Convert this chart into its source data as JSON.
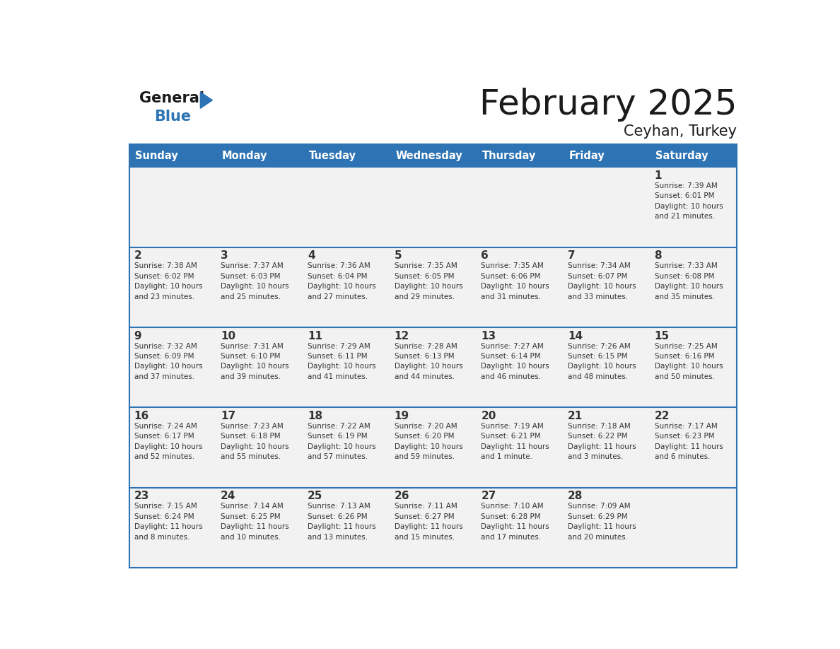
{
  "title": "February 2025",
  "subtitle": "Ceyhan, Turkey",
  "header_color": "#2E74B5",
  "header_text_color": "#FFFFFF",
  "cell_bg_color": "#F2F2F2",
  "border_color": "#2E74B5",
  "text_color": "#333333",
  "day_names": [
    "Sunday",
    "Monday",
    "Tuesday",
    "Wednesday",
    "Thursday",
    "Friday",
    "Saturday"
  ],
  "weeks": [
    [
      {
        "day": null,
        "info": null
      },
      {
        "day": null,
        "info": null
      },
      {
        "day": null,
        "info": null
      },
      {
        "day": null,
        "info": null
      },
      {
        "day": null,
        "info": null
      },
      {
        "day": null,
        "info": null
      },
      {
        "day": 1,
        "info": "Sunrise: 7:39 AM\nSunset: 6:01 PM\nDaylight: 10 hours\nand 21 minutes."
      }
    ],
    [
      {
        "day": 2,
        "info": "Sunrise: 7:38 AM\nSunset: 6:02 PM\nDaylight: 10 hours\nand 23 minutes."
      },
      {
        "day": 3,
        "info": "Sunrise: 7:37 AM\nSunset: 6:03 PM\nDaylight: 10 hours\nand 25 minutes."
      },
      {
        "day": 4,
        "info": "Sunrise: 7:36 AM\nSunset: 6:04 PM\nDaylight: 10 hours\nand 27 minutes."
      },
      {
        "day": 5,
        "info": "Sunrise: 7:35 AM\nSunset: 6:05 PM\nDaylight: 10 hours\nand 29 minutes."
      },
      {
        "day": 6,
        "info": "Sunrise: 7:35 AM\nSunset: 6:06 PM\nDaylight: 10 hours\nand 31 minutes."
      },
      {
        "day": 7,
        "info": "Sunrise: 7:34 AM\nSunset: 6:07 PM\nDaylight: 10 hours\nand 33 minutes."
      },
      {
        "day": 8,
        "info": "Sunrise: 7:33 AM\nSunset: 6:08 PM\nDaylight: 10 hours\nand 35 minutes."
      }
    ],
    [
      {
        "day": 9,
        "info": "Sunrise: 7:32 AM\nSunset: 6:09 PM\nDaylight: 10 hours\nand 37 minutes."
      },
      {
        "day": 10,
        "info": "Sunrise: 7:31 AM\nSunset: 6:10 PM\nDaylight: 10 hours\nand 39 minutes."
      },
      {
        "day": 11,
        "info": "Sunrise: 7:29 AM\nSunset: 6:11 PM\nDaylight: 10 hours\nand 41 minutes."
      },
      {
        "day": 12,
        "info": "Sunrise: 7:28 AM\nSunset: 6:13 PM\nDaylight: 10 hours\nand 44 minutes."
      },
      {
        "day": 13,
        "info": "Sunrise: 7:27 AM\nSunset: 6:14 PM\nDaylight: 10 hours\nand 46 minutes."
      },
      {
        "day": 14,
        "info": "Sunrise: 7:26 AM\nSunset: 6:15 PM\nDaylight: 10 hours\nand 48 minutes."
      },
      {
        "day": 15,
        "info": "Sunrise: 7:25 AM\nSunset: 6:16 PM\nDaylight: 10 hours\nand 50 minutes."
      }
    ],
    [
      {
        "day": 16,
        "info": "Sunrise: 7:24 AM\nSunset: 6:17 PM\nDaylight: 10 hours\nand 52 minutes."
      },
      {
        "day": 17,
        "info": "Sunrise: 7:23 AM\nSunset: 6:18 PM\nDaylight: 10 hours\nand 55 minutes."
      },
      {
        "day": 18,
        "info": "Sunrise: 7:22 AM\nSunset: 6:19 PM\nDaylight: 10 hours\nand 57 minutes."
      },
      {
        "day": 19,
        "info": "Sunrise: 7:20 AM\nSunset: 6:20 PM\nDaylight: 10 hours\nand 59 minutes."
      },
      {
        "day": 20,
        "info": "Sunrise: 7:19 AM\nSunset: 6:21 PM\nDaylight: 11 hours\nand 1 minute."
      },
      {
        "day": 21,
        "info": "Sunrise: 7:18 AM\nSunset: 6:22 PM\nDaylight: 11 hours\nand 3 minutes."
      },
      {
        "day": 22,
        "info": "Sunrise: 7:17 AM\nSunset: 6:23 PM\nDaylight: 11 hours\nand 6 minutes."
      }
    ],
    [
      {
        "day": 23,
        "info": "Sunrise: 7:15 AM\nSunset: 6:24 PM\nDaylight: 11 hours\nand 8 minutes."
      },
      {
        "day": 24,
        "info": "Sunrise: 7:14 AM\nSunset: 6:25 PM\nDaylight: 11 hours\nand 10 minutes."
      },
      {
        "day": 25,
        "info": "Sunrise: 7:13 AM\nSunset: 6:26 PM\nDaylight: 11 hours\nand 13 minutes."
      },
      {
        "day": 26,
        "info": "Sunrise: 7:11 AM\nSunset: 6:27 PM\nDaylight: 11 hours\nand 15 minutes."
      },
      {
        "day": 27,
        "info": "Sunrise: 7:10 AM\nSunset: 6:28 PM\nDaylight: 11 hours\nand 17 minutes."
      },
      {
        "day": 28,
        "info": "Sunrise: 7:09 AM\nSunset: 6:29 PM\nDaylight: 11 hours\nand 20 minutes."
      },
      {
        "day": null,
        "info": null
      }
    ]
  ],
  "logo_general_color": "#1a1a1a",
  "logo_blue_color": "#2E74B5",
  "logo_triangle_color": "#2E74B5",
  "fig_width": 11.88,
  "fig_height": 9.18,
  "dpi": 100
}
